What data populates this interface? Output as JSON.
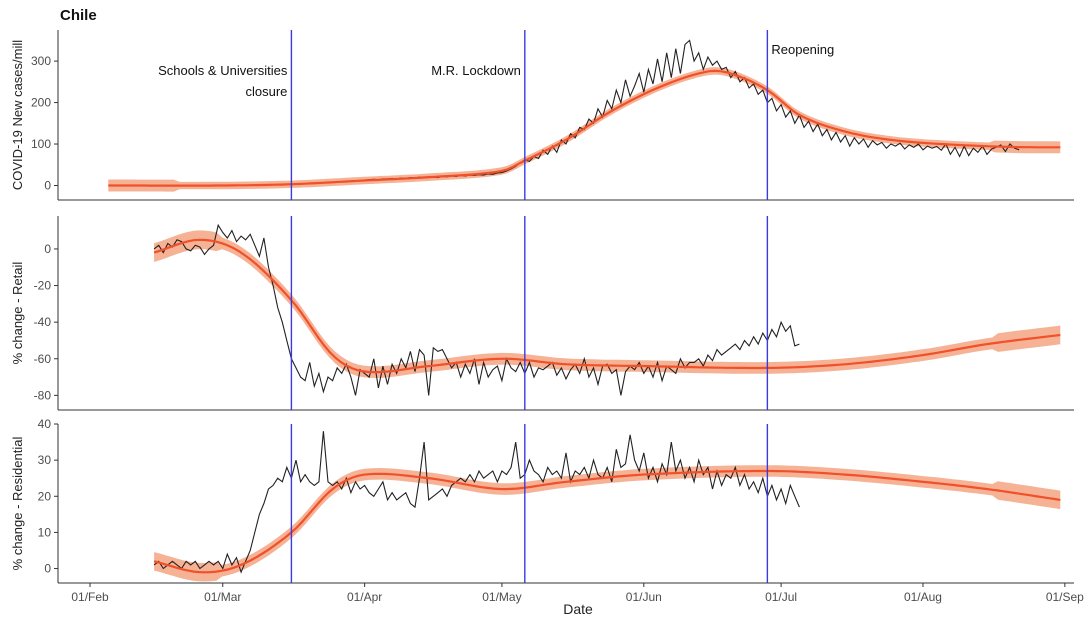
{
  "title": "Chile",
  "chart_data": {
    "type": "line",
    "xlabel": "Date",
    "x_ticks": [
      "01/Feb",
      "01/Mar",
      "01/Apr",
      "01/May",
      "01/Jun",
      "01/Jul",
      "01/Aug",
      "01/Sep"
    ],
    "x_tick_dates": [
      "2020-02-01",
      "2020-03-01",
      "2020-04-01",
      "2020-05-01",
      "2020-06-01",
      "2020-07-01",
      "2020-08-01",
      "2020-09-01"
    ],
    "xlim": [
      "2020-01-25",
      "2020-09-03"
    ],
    "events": [
      {
        "date": "2020-03-16",
        "label_lines": [
          "Schools & Universities",
          "closure"
        ]
      },
      {
        "date": "2020-05-06",
        "label_lines": [
          "M.R. Lockdown"
        ]
      },
      {
        "date": "2020-06-28",
        "label_lines": [
          "Reopening"
        ]
      }
    ],
    "panels": [
      {
        "ylabel": "COVID-19 New cases/mill",
        "ylim": [
          -35,
          375
        ],
        "yticks": [
          0,
          100,
          200,
          300
        ],
        "raw_start": "2020-03-16",
        "raw": [
          2,
          3,
          3,
          4,
          4,
          5,
          6,
          6,
          7,
          8,
          9,
          9,
          10,
          11,
          12,
          11,
          13,
          14,
          15,
          14,
          16,
          16,
          17,
          16,
          18,
          17,
          19,
          18,
          20,
          19,
          21,
          20,
          19,
          22,
          21,
          23,
          22,
          24,
          23,
          25,
          24,
          26,
          25,
          28,
          27,
          30,
          31,
          35,
          40,
          46,
          55,
          62,
          58,
          70,
          65,
          85,
          75,
          95,
          80,
          110,
          100,
          125,
          115,
          140,
          135,
          160,
          150,
          185,
          165,
          205,
          185,
          230,
          200,
          255,
          215,
          240,
          270,
          225,
          280,
          245,
          305,
          250,
          320,
          260,
          330,
          270,
          340,
          350,
          300,
          320,
          280,
          310,
          290,
          300,
          280,
          285,
          260,
          275,
          250,
          260,
          235,
          245,
          220,
          230,
          200,
          210,
          180,
          195,
          165,
          180,
          150,
          170,
          140,
          155,
          130,
          148,
          120,
          135,
          110,
          128,
          105,
          120,
          95,
          115,
          100,
          112,
          92,
          108,
          98,
          104,
          90,
          100,
          95,
          102,
          88,
          98,
          92,
          100,
          86,
          95,
          90,
          94,
          85,
          100,
          75,
          92,
          70,
          95,
          72,
          90,
          80,
          95,
          75,
          88,
          92,
          98,
          82,
          100,
          90,
          86
        ],
        "smooth_points": [
          [
            "2020-02-05",
            0
          ],
          [
            "2020-03-01",
            0
          ],
          [
            "2020-03-16",
            3
          ],
          [
            "2020-04-01",
            12
          ],
          [
            "2020-04-15",
            20
          ],
          [
            "2020-05-01",
            35
          ],
          [
            "2020-05-06",
            60
          ],
          [
            "2020-05-15",
            110
          ],
          [
            "2020-05-25",
            180
          ],
          [
            "2020-06-05",
            240
          ],
          [
            "2020-06-15",
            275
          ],
          [
            "2020-06-20",
            270
          ],
          [
            "2020-06-28",
            230
          ],
          [
            "2020-07-05",
            170
          ],
          [
            "2020-07-15",
            130
          ],
          [
            "2020-07-25",
            110
          ],
          [
            "2020-08-05",
            100
          ],
          [
            "2020-08-20",
            93
          ],
          [
            "2020-08-31",
            92
          ]
        ],
        "band_half_width": 9
      },
      {
        "ylabel": "% change - Retail",
        "ylim": [
          -88,
          18
        ],
        "yticks": [
          0,
          -20,
          -40,
          -60,
          -80
        ],
        "raw_start": "2020-02-15",
        "raw": [
          0,
          2,
          -2,
          3,
          1,
          5,
          4,
          0,
          -1,
          2,
          1,
          -3,
          0,
          2,
          13,
          9,
          6,
          10,
          4,
          7,
          5,
          8,
          2,
          -4,
          6,
          -10,
          -20,
          -32,
          -40,
          -50,
          -60,
          -65,
          -70,
          -72,
          -62,
          -75,
          -68,
          -78,
          -70,
          -72,
          -65,
          -68,
          -63,
          -70,
          -80,
          -66,
          -68,
          -70,
          -60,
          -76,
          -64,
          -74,
          -63,
          -68,
          -60,
          -65,
          -56,
          -67,
          -55,
          -58,
          -80,
          -54,
          -56,
          -55,
          -60,
          -65,
          -62,
          -70,
          -63,
          -68,
          -60,
          -74,
          -62,
          -70,
          -66,
          -64,
          -72,
          -60,
          -65,
          -67,
          -62,
          -68,
          -62,
          -70,
          -65,
          -66,
          -64,
          -62,
          -69,
          -65,
          -71,
          -66,
          -63,
          -68,
          -60,
          -70,
          -65,
          -74,
          -64,
          -63,
          -68,
          -66,
          -80,
          -67,
          -64,
          -66,
          -62,
          -68,
          -64,
          -70,
          -62,
          -72,
          -64,
          -66,
          -68,
          -60,
          -65,
          -62,
          -62,
          -60,
          -64,
          -58,
          -61,
          -55,
          -58,
          -56,
          -54,
          -52,
          -55,
          -50,
          -53,
          -48,
          -52,
          -46,
          -50,
          -44,
          -48,
          -40,
          -45,
          -42,
          -53,
          -52
        ],
        "smooth_points": [
          [
            "2020-02-15",
            -2
          ],
          [
            "2020-02-25",
            5
          ],
          [
            "2020-03-05",
            -2
          ],
          [
            "2020-03-16",
            -28
          ],
          [
            "2020-03-25",
            -58
          ],
          [
            "2020-04-01",
            -67
          ],
          [
            "2020-04-15",
            -64
          ],
          [
            "2020-05-01",
            -60
          ],
          [
            "2020-05-15",
            -63
          ],
          [
            "2020-06-01",
            -64
          ],
          [
            "2020-06-28",
            -65
          ],
          [
            "2020-07-15",
            -63
          ],
          [
            "2020-08-01",
            -58
          ],
          [
            "2020-08-15",
            -52
          ],
          [
            "2020-08-31",
            -47
          ]
        ],
        "band_half_width": 3.2
      },
      {
        "ylabel": "% change - Residential",
        "ylim": [
          -4,
          40
        ],
        "yticks": [
          0,
          10,
          20,
          30,
          40
        ],
        "raw_start": "2020-02-15",
        "raw": [
          1,
          2,
          0,
          1,
          2,
          1,
          0,
          2,
          1,
          2,
          0,
          1,
          2,
          1,
          2,
          0,
          4,
          1,
          3,
          -1,
          2,
          5,
          10,
          15,
          18,
          22,
          23,
          25,
          24,
          28,
          25,
          30,
          24,
          26,
          24,
          23,
          24,
          38,
          24,
          23,
          24,
          22,
          25,
          21,
          24,
          22,
          23,
          21,
          20,
          22,
          24,
          19,
          21,
          19,
          20,
          21,
          18,
          17,
          25,
          35,
          19,
          20,
          21,
          22,
          20,
          23,
          24,
          25,
          24,
          26,
          24,
          27,
          25,
          26,
          27,
          24,
          27,
          26,
          28,
          35,
          25,
          26,
          30,
          27,
          26,
          24,
          28,
          26,
          27,
          25,
          32,
          24,
          27,
          26,
          28,
          25,
          30,
          26,
          25,
          28,
          24,
          33,
          28,
          29,
          37,
          30,
          27,
          32,
          25,
          28,
          24,
          29,
          26,
          35,
          27,
          30,
          25,
          28,
          24,
          30,
          26,
          28,
          22,
          27,
          23,
          26,
          25,
          28,
          23,
          26,
          22,
          24,
          21,
          25,
          20,
          23,
          19,
          22,
          18,
          23,
          20,
          17
        ],
        "smooth_points": [
          [
            "2020-02-15",
            2
          ],
          [
            "2020-02-25",
            -1
          ],
          [
            "2020-03-05",
            1
          ],
          [
            "2020-03-16",
            10
          ],
          [
            "2020-03-25",
            22
          ],
          [
            "2020-04-01",
            26
          ],
          [
            "2020-04-15",
            25
          ],
          [
            "2020-05-01",
            22
          ],
          [
            "2020-05-15",
            24
          ],
          [
            "2020-06-01",
            26
          ],
          [
            "2020-06-28",
            27
          ],
          [
            "2020-07-15",
            26
          ],
          [
            "2020-08-01",
            24
          ],
          [
            "2020-08-15",
            22
          ],
          [
            "2020-08-31",
            19
          ]
        ],
        "band_half_width": 1.6
      }
    ]
  }
}
